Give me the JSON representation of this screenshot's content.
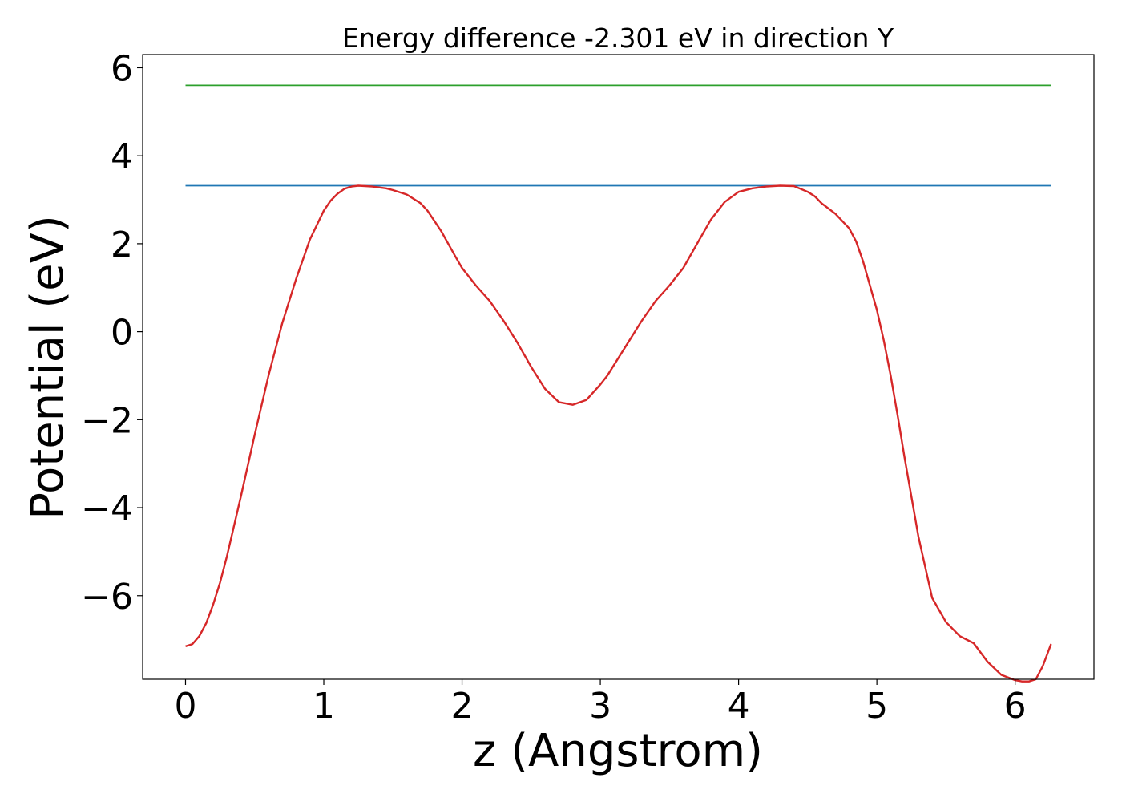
{
  "chart_data": {
    "type": "line",
    "title": "Energy difference -2.301 eV in direction Y",
    "xlabel": "z (Angstrom)",
    "ylabel": "Potential (eV)",
    "xlim": [
      -0.31,
      6.57
    ],
    "ylim": [
      -7.9,
      6.3
    ],
    "x_ticks": [
      0,
      1,
      2,
      3,
      4,
      5,
      6
    ],
    "x_tick_labels": [
      "0",
      "1",
      "2",
      "3",
      "4",
      "5",
      "6"
    ],
    "y_ticks": [
      6,
      4,
      2,
      0,
      -2,
      -4,
      -6
    ],
    "y_tick_labels": [
      "6",
      "4",
      "2",
      "0",
      "−2",
      "−4",
      "−6"
    ],
    "grid": false,
    "legend": "none",
    "series": [
      {
        "color": "#2ca02c",
        "x": [
          0,
          6.26
        ],
        "y": [
          5.6,
          5.6
        ]
      },
      {
        "color": "#1f77b4",
        "x": [
          0,
          6.26
        ],
        "y": [
          3.32,
          3.32
        ]
      },
      {
        "color": "#d62728",
        "x": [
          0,
          0.05,
          0.1,
          0.15,
          0.2,
          0.25,
          0.3,
          0.4,
          0.5,
          0.6,
          0.7,
          0.8,
          0.9,
          1.0,
          1.05,
          1.1,
          1.15,
          1.2,
          1.25,
          1.3,
          1.35,
          1.4,
          1.45,
          1.5,
          1.6,
          1.7,
          1.75,
          1.8,
          1.85,
          1.9,
          1.95,
          2.0,
          2.1,
          2.2,
          2.3,
          2.4,
          2.5,
          2.6,
          2.7,
          2.8,
          2.9,
          3.0,
          3.05,
          3.1,
          3.15,
          3.2,
          3.25,
          3.3,
          3.4,
          3.5,
          3.6,
          3.7,
          3.8,
          3.9,
          4.0,
          4.1,
          4.2,
          4.3,
          4.4,
          4.5,
          4.55,
          4.6,
          4.7,
          4.8,
          4.85,
          4.9,
          4.95,
          5.0,
          5.05,
          5.1,
          5.15,
          5.2,
          5.3,
          5.4,
          5.5,
          5.6,
          5.7,
          5.8,
          5.9,
          6.0,
          6.05,
          6.1,
          6.15,
          6.2,
          6.26
        ],
        "y": [
          -7.15,
          -7.1,
          -6.92,
          -6.62,
          -6.2,
          -5.7,
          -5.1,
          -3.75,
          -2.35,
          -1.0,
          0.2,
          1.2,
          2.1,
          2.75,
          2.98,
          3.14,
          3.25,
          3.3,
          3.32,
          3.31,
          3.3,
          3.28,
          3.26,
          3.22,
          3.12,
          2.92,
          2.75,
          2.52,
          2.28,
          2.0,
          1.72,
          1.45,
          1.05,
          0.7,
          0.25,
          -0.25,
          -0.8,
          -1.3,
          -1.6,
          -1.66,
          -1.55,
          -1.2,
          -1.0,
          -0.75,
          -0.5,
          -0.25,
          0.0,
          0.25,
          0.7,
          1.05,
          1.45,
          2.0,
          2.55,
          2.95,
          3.18,
          3.26,
          3.3,
          3.32,
          3.31,
          3.18,
          3.08,
          2.92,
          2.68,
          2.35,
          2.05,
          1.6,
          1.05,
          0.5,
          -0.2,
          -1.0,
          -1.9,
          -2.85,
          -4.65,
          -6.05,
          -6.6,
          -6.92,
          -7.08,
          -7.5,
          -7.8,
          -7.92,
          -7.95,
          -7.95,
          -7.9,
          -7.6,
          -7.1
        ]
      }
    ]
  }
}
